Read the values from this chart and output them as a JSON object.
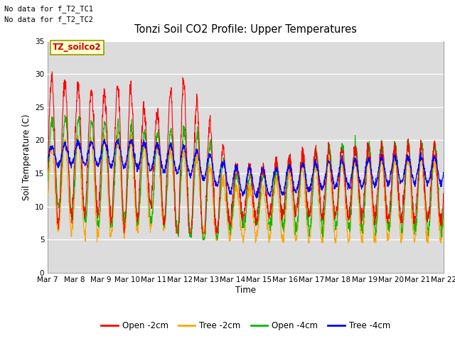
{
  "title": "Tonzi Soil CO2 Profile: Upper Temperatures",
  "ylabel": "Soil Temperature (C)",
  "xlabel": "Time",
  "annotation_line1": "No data for f_T2_TC1",
  "annotation_line2": "No data for f_T2_TC2",
  "box_label": "TZ_soilco2",
  "ylim": [
    0,
    35
  ],
  "colors": {
    "open_2cm": "#ff0000",
    "tree_2cm": "#ffa500",
    "open_4cm": "#00bb00",
    "tree_4cm": "#0000ff"
  },
  "legend_entries": [
    "Open -2cm",
    "Tree -2cm",
    "Open -4cm",
    "Tree -4cm"
  ],
  "background_color": "#dcdcdc",
  "x_tick_labels": [
    "Mar 7",
    "Mar 8",
    "Mar 9",
    "Mar 10",
    "Mar 11",
    "Mar 12",
    "Mar 13",
    "Mar 14",
    "Mar 15",
    "Mar 16",
    "Mar 17",
    "Mar 18",
    "Mar 19",
    "Mar 20",
    "Mar 21",
    "Mar 22"
  ]
}
